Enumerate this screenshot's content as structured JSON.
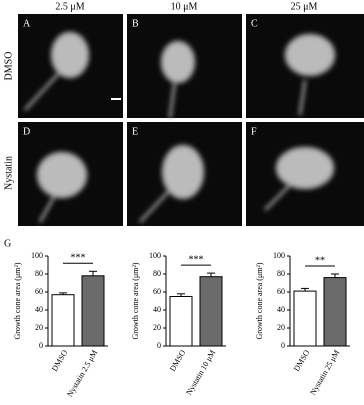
{
  "figure": {
    "column_headers": [
      "2.5 μM",
      "10 μM",
      "25 μM"
    ],
    "row_labels": [
      "DMSO",
      "Nystatin"
    ],
    "panel_letters": [
      "A",
      "B",
      "C",
      "D",
      "E",
      "F"
    ],
    "chart_panel_letter": "G"
  },
  "chart_data": [
    {
      "type": "bar",
      "ylabel": "Growth cone area (μm²)",
      "categories": [
        "DMSO",
        "Nystatin 2.5 μM"
      ],
      "values": [
        57,
        78
      ],
      "errors": [
        2,
        5
      ],
      "colors": [
        "#ffffff",
        "#6b6b6b"
      ],
      "ylim": [
        0,
        100
      ],
      "yticks": [
        0,
        20,
        40,
        60,
        80,
        100
      ],
      "significance": "***"
    },
    {
      "type": "bar",
      "ylabel": "Growth cone area (μm²)",
      "categories": [
        "DMSO",
        "Nystatin 10 μM"
      ],
      "values": [
        55,
        77
      ],
      "errors": [
        3,
        4
      ],
      "colors": [
        "#ffffff",
        "#6b6b6b"
      ],
      "ylim": [
        0,
        100
      ],
      "yticks": [
        0,
        20,
        40,
        60,
        80,
        100
      ],
      "significance": "***"
    },
    {
      "type": "bar",
      "ylabel": "Growth cone area (μm²)",
      "categories": [
        "DMSO",
        "Nystatin 25 μM"
      ],
      "values": [
        61,
        76
      ],
      "errors": [
        3,
        4
      ],
      "colors": [
        "#ffffff",
        "#6b6b6b"
      ],
      "ylim": [
        0,
        100
      ],
      "yticks": [
        0,
        20,
        40,
        60,
        80,
        100
      ],
      "significance": "**"
    }
  ]
}
